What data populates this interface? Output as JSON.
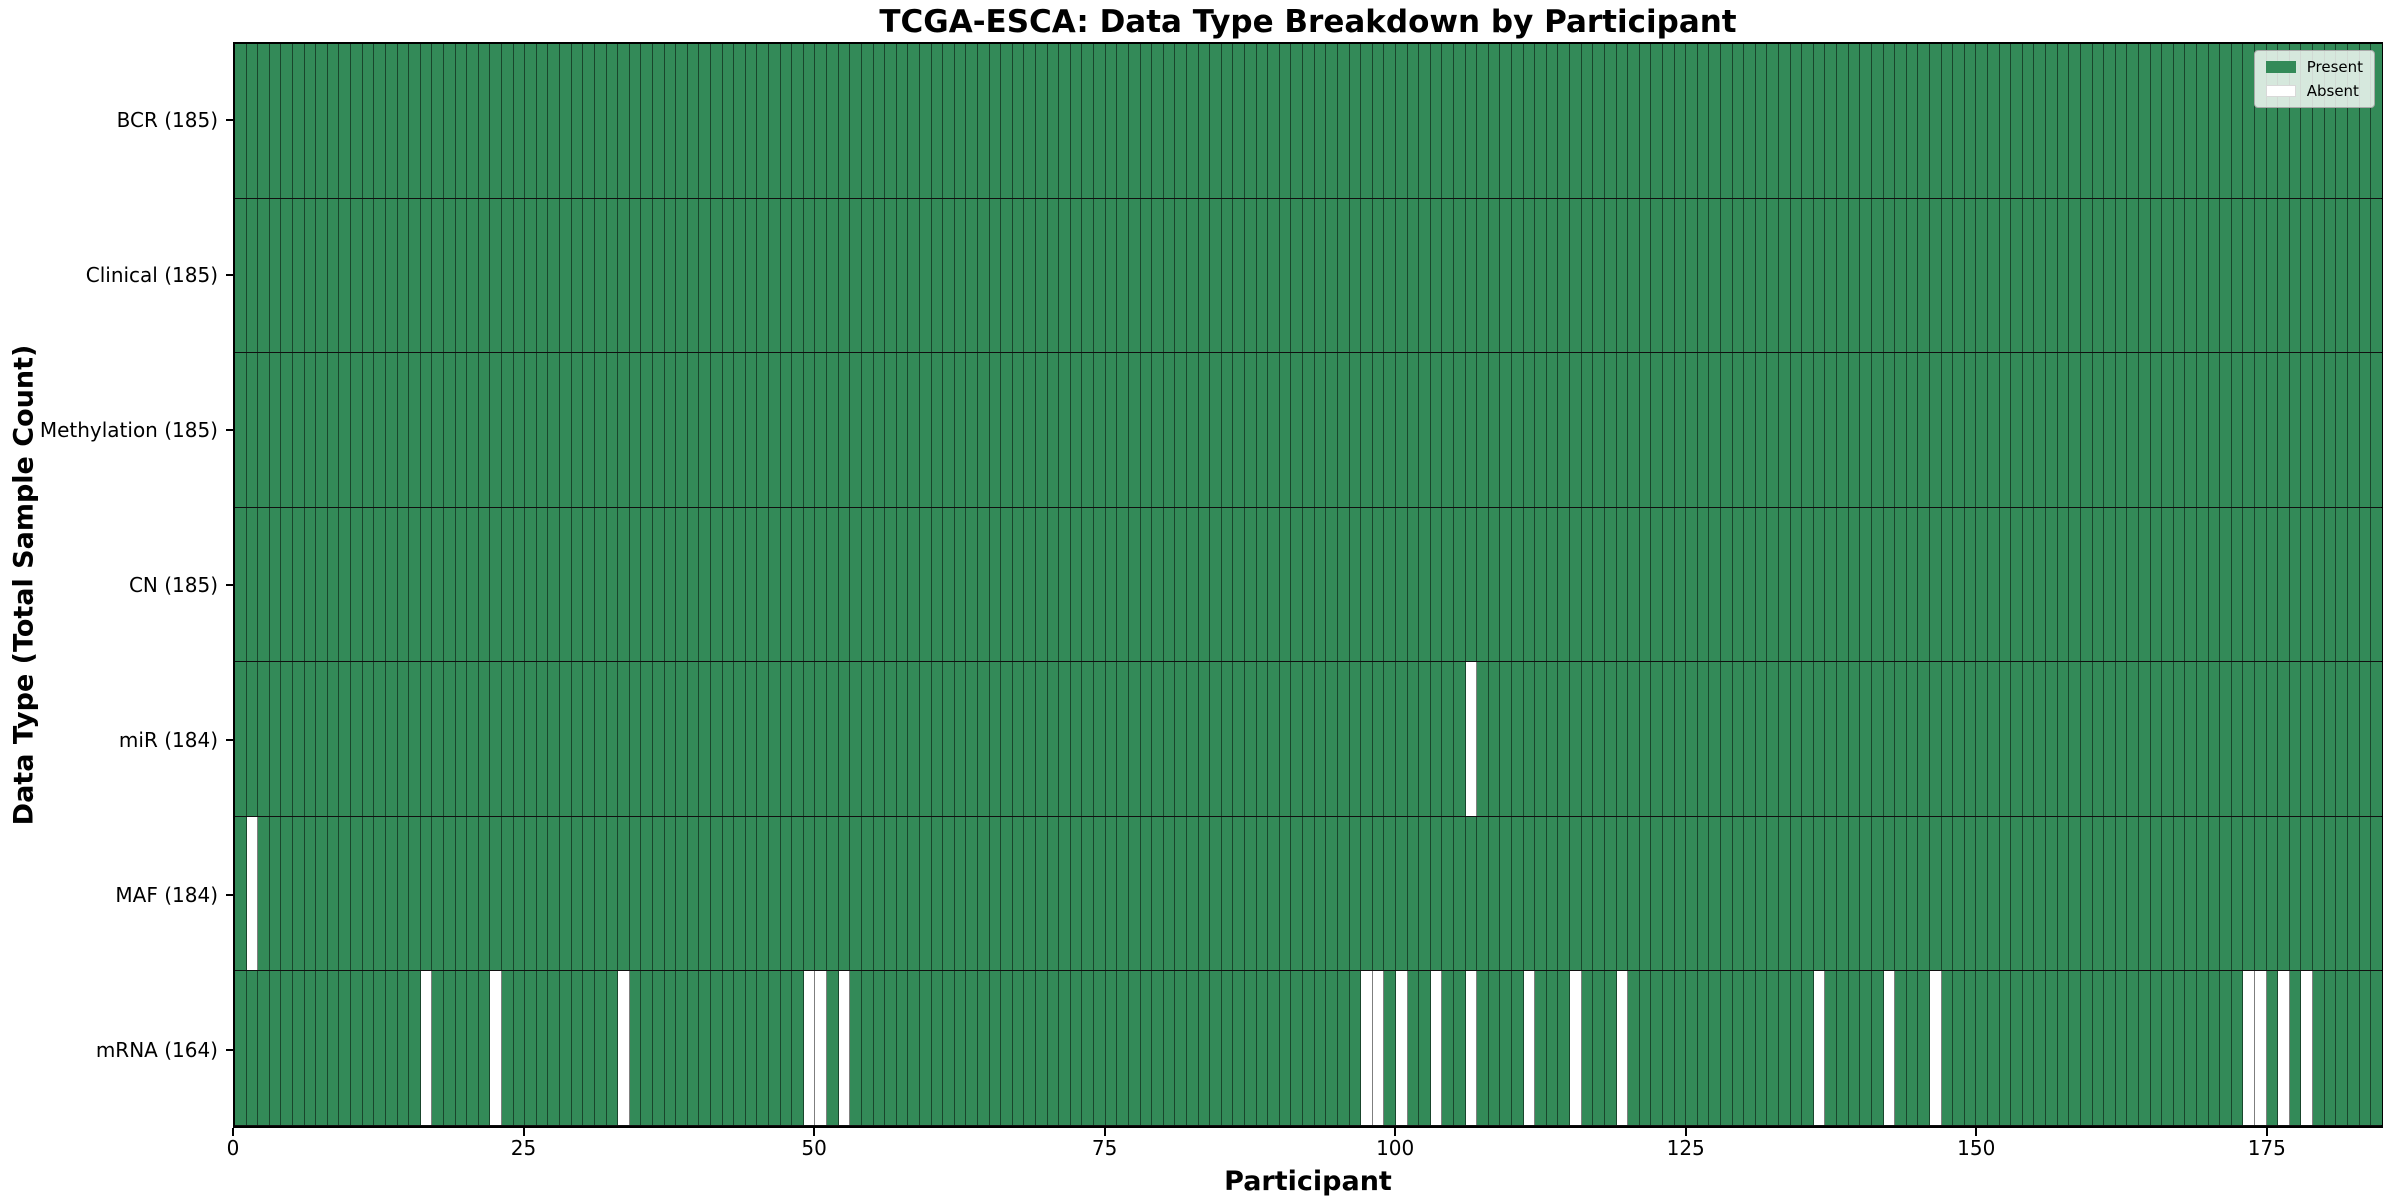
{
  "title": "TCGA-ESCA: Data Type Breakdown by Participant",
  "xlabel": "Participant",
  "ylabel": "Data Type (Total Sample Count)",
  "colors": {
    "present": "#338a58",
    "absent": "#ffffff",
    "grid_line": "rgba(0,0,0,0.5)",
    "row_divider": "#101010",
    "plot_border": "#000000"
  },
  "legend": {
    "entries": [
      {
        "label": "Present",
        "color": "#338a58"
      },
      {
        "label": "Absent",
        "color": "#ffffff"
      }
    ],
    "position": "upper right"
  },
  "chart_data": {
    "type": "heatmap",
    "title": "TCGA-ESCA: Data Type Breakdown by Participant",
    "xlabel": "Participant",
    "ylabel": "Data Type (Total Sample Count)",
    "n_participants": 185,
    "x_range": [
      0,
      185
    ],
    "x_ticks": [
      0,
      25,
      50,
      75,
      100,
      125,
      150,
      175
    ],
    "grid": true,
    "legend_entries": [
      "Present",
      "Absent"
    ],
    "legend_position": "upper right",
    "rows": [
      {
        "name": "BCR",
        "label": "BCR (185)",
        "present_count": 185,
        "absent_participants": []
      },
      {
        "name": "Clinical",
        "label": "Clinical (185)",
        "present_count": 185,
        "absent_participants": []
      },
      {
        "name": "Methylation",
        "label": "Methylation (185)",
        "present_count": 185,
        "absent_participants": []
      },
      {
        "name": "CN",
        "label": "CN (185)",
        "present_count": 185,
        "absent_participants": []
      },
      {
        "name": "miR",
        "label": "miR (184)",
        "present_count": 184,
        "absent_participants": [
          106
        ]
      },
      {
        "name": "MAF",
        "label": "MAF (184)",
        "present_count": 184,
        "absent_participants": [
          1
        ]
      },
      {
        "name": "mRNA",
        "label": "mRNA (164)",
        "present_count": 164,
        "absent_participants": [
          16,
          22,
          33,
          49,
          50,
          52,
          97,
          98,
          100,
          103,
          106,
          111,
          115,
          119,
          136,
          142,
          146,
          173,
          174,
          176,
          178
        ]
      }
    ]
  }
}
